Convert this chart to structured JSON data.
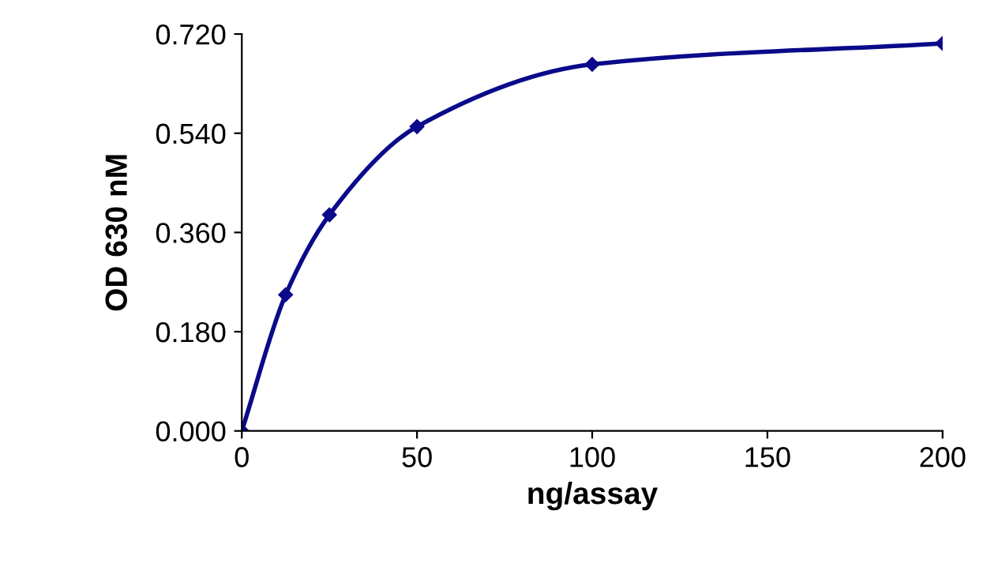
{
  "chart_data": {
    "type": "line",
    "xlabel": "ng/assay",
    "ylabel": "OD 630 nM",
    "x": [
      0,
      12.5,
      25,
      50,
      100,
      200
    ],
    "series": [
      {
        "color": "#0a0a8a",
        "values": [
          0.0,
          0.247,
          0.392,
          0.552,
          0.665,
          0.703
        ]
      }
    ],
    "xlim": [
      0,
      200
    ],
    "xticks": [
      0,
      50,
      100,
      150,
      200
    ],
    "ylim": [
      0,
      0.72
    ],
    "yticks": [
      {
        "value": 0,
        "label": "0.000"
      },
      {
        "value": 0.18,
        "label": "0.180"
      },
      {
        "value": 0.36,
        "label": "0.360"
      },
      {
        "value": 0.54,
        "label": "0.540"
      },
      {
        "value": 0.72,
        "label": "0.720"
      }
    ],
    "marker": "diamond",
    "line_style": "solid",
    "grid": false
  }
}
